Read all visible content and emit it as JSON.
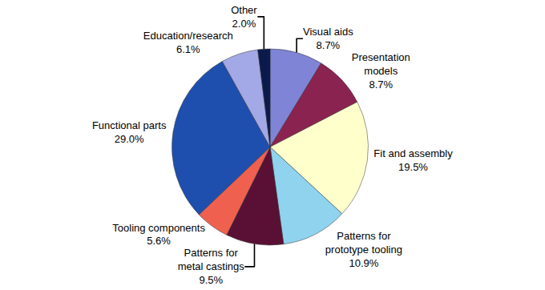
{
  "chart_data": {
    "type": "pie",
    "categories": [
      "Visual aids",
      "Presentation models",
      "Fit and assembly",
      "Patterns for prototype tooling",
      "Patterns for metal castings",
      "Tooling components",
      "Functional parts",
      "Education/research",
      "Other"
    ],
    "values": [
      8.7,
      8.7,
      19.5,
      10.9,
      9.5,
      5.6,
      29.0,
      6.1,
      2.0
    ],
    "value_labels": [
      "8.7%",
      "8.7%",
      "19.5%",
      "10.9%",
      "9.5%",
      "5.6%",
      "29.0%",
      "6.1%",
      "2.0%"
    ],
    "colors": [
      "#7f84d6",
      "#8b2350",
      "#ffffcc",
      "#8fd3ee",
      "#5a1035",
      "#f0604f",
      "#1f4fae",
      "#a3a8e6",
      "#0b1a4a"
    ],
    "data_labels": true
  }
}
